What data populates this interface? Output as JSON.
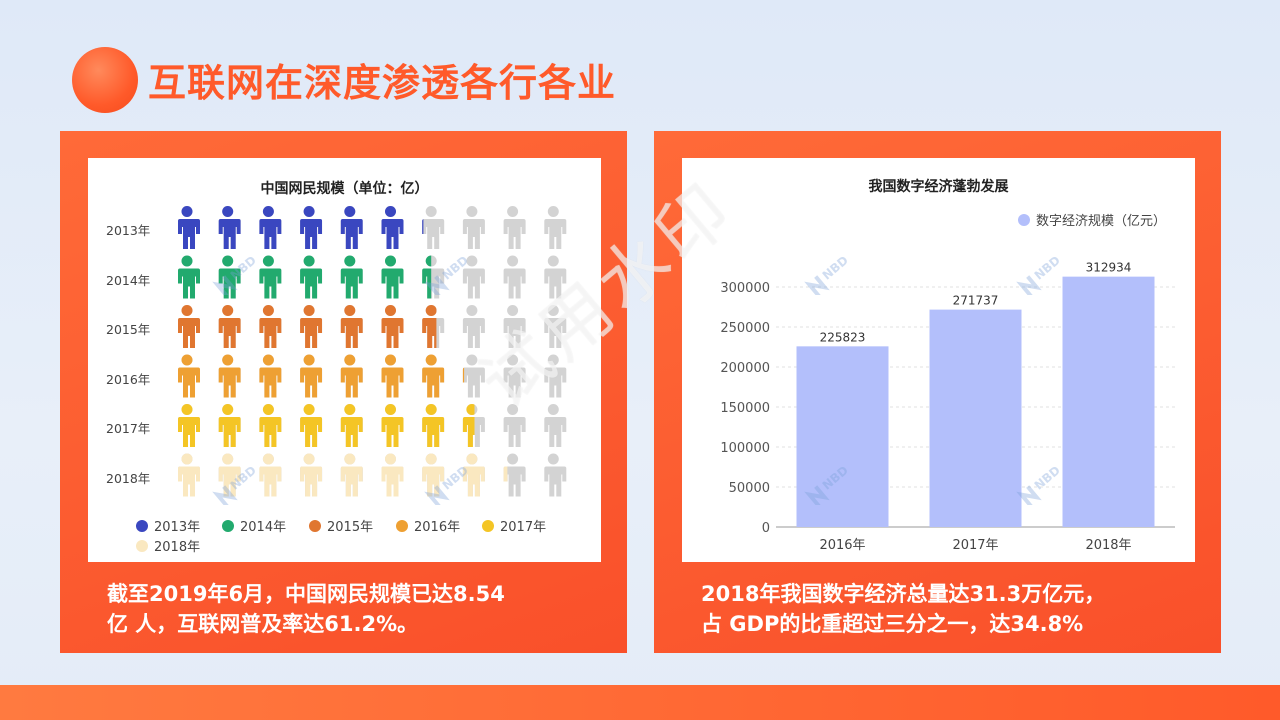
{
  "page": {
    "title": "互联网在深度渗透各行各业",
    "watermark": "试用水印",
    "nbd_logo_text": "NBD"
  },
  "colors": {
    "accent": "#ff5a2a",
    "panel": "#fa552b",
    "bar": "#b3bffb",
    "inactive_person": "#d3d3d3",
    "years": {
      "2013年": "#3a47c0",
      "2014年": "#22aa6e",
      "2015年": "#e07630",
      "2016年": "#eea033",
      "2017年": "#f4c525",
      "2018年": "#fae8c0"
    }
  },
  "left_panel": {
    "caption_lines": [
      "截至2019年6月，中国网民规模已达8.54",
      "亿 人，互联网普及率达61.2%。"
    ]
  },
  "right_panel": {
    "caption_lines": [
      "2018年我国数字经济总量达31.3万亿元，",
      "占 GDP的比重超过三分之一，达34.8%"
    ]
  },
  "chart_data": [
    {
      "type": "pictogram",
      "title": "中国网民规模（单位：亿）",
      "icons_per_row": 10,
      "categories": [
        "2013年",
        "2014年",
        "2015年",
        "2016年",
        "2017年",
        "2018年"
      ],
      "values": [
        6.2,
        6.5,
        6.7,
        7.2,
        7.6,
        8.3
      ],
      "legend": [
        "2013年",
        "2014年",
        "2015年",
        "2016年",
        "2017年",
        "2018年"
      ],
      "legend_position": "bottom"
    },
    {
      "type": "bar",
      "title": "我国数字经济蓬勃发展",
      "categories": [
        "2016年",
        "2017年",
        "2018年"
      ],
      "series": [
        {
          "name": "数字经济规模（亿元）",
          "values": [
            225823,
            271737,
            312934
          ]
        }
      ],
      "data_labels": [
        "225823",
        "271737",
        "312934"
      ],
      "ylim": [
        0,
        300000
      ],
      "y_ticks": [
        0,
        50000,
        100000,
        150000,
        200000,
        250000,
        300000
      ],
      "grid": true,
      "legend_position": "top-right"
    }
  ]
}
